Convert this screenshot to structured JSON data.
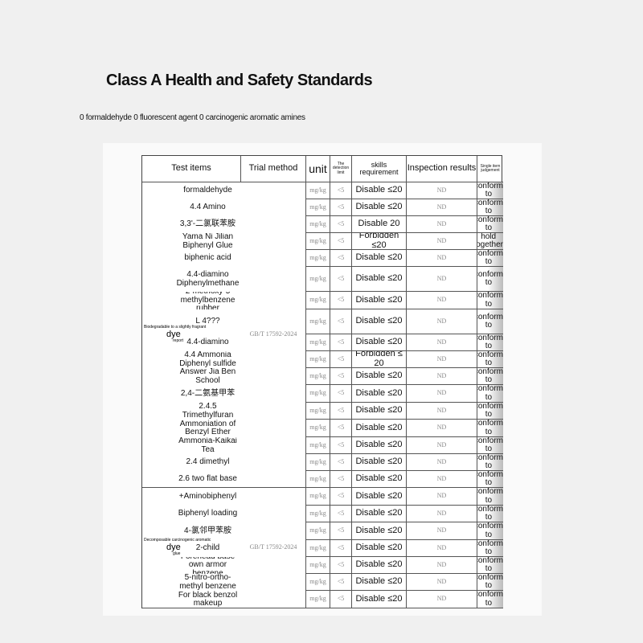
{
  "title": "Class A Health and Safety Standards",
  "subtitle": "0 formaldehyde 0 fluorescent agent 0 carcinogenic aromatic amines",
  "headers": {
    "items": "Test items",
    "method": "Trial method",
    "unit": "unit",
    "limit": "The detection limit",
    "requirement": "skills requirement",
    "results": "Inspection results",
    "judgement": "Single item judgement"
  },
  "groups": [
    {
      "label_top": "Biodegradable to a slightly fragrant",
      "label": "dye",
      "label_note": "report",
      "method": "GB/T 17592-2024",
      "rows": [
        {
          "item": "formaldehyde",
          "req": "Disable ≤20",
          "jud": "conform to"
        },
        {
          "item": "4.4 Amino",
          "req": "Disable ≤20",
          "jud": "conform to"
        },
        {
          "item": "3,3'-二氯联苯胺",
          "req": "Disable 20",
          "jud": "conform to"
        },
        {
          "item": "Yama Ni Jilian Biphenyl Glue",
          "req": "Forbidden ≤20",
          "jud": "hold together"
        },
        {
          "item": "biphenic acid",
          "req": "Disable ≤20",
          "jud": "conform to"
        },
        {
          "item": "4.4-diamino Diphenylmethane",
          "req": "Disable ≤20",
          "jud": "conform to"
        },
        {
          "item": "2-methoxy-5 methylbenzene rubber",
          "req": "Disable ≤20",
          "jud": "conform to"
        },
        {
          "item": "L 4???",
          "req": "Disable ≤20",
          "jud": "conform to"
        },
        {
          "item": "4.4-diamino",
          "req": "Disable ≤20",
          "jud": "conform to"
        },
        {
          "item": "4.4 Ammonia Diphenyl sulfide",
          "req": "Forbidden ≤ 20",
          "jud": "conform to"
        },
        {
          "item": "Answer Jia Ben School",
          "req": "Disable ≤20",
          "jud": "conform to"
        },
        {
          "item": "2,4-二氨基甲苯",
          "req": "Disable ≤20",
          "jud": "conform to"
        },
        {
          "item": "2.4.5 Trimethylfuran",
          "req": "Disable ≤20",
          "jud": "conform to"
        },
        {
          "item": "Ammoniation of Benzyl Ether",
          "req": "Disable ≤20",
          "jud": "conform to"
        },
        {
          "item": "Ammonia-Kaikai Tea",
          "req": "Disable ≤20",
          "jud": "conform to"
        },
        {
          "item": "2.4 dimethyl",
          "req": "Disable ≤20",
          "jud": "conform to"
        },
        {
          "item": "2.6 two flat base",
          "req": "Disable ≤20",
          "jud": "conform to"
        }
      ]
    },
    {
      "label_top": "Decomposable carcinogenic aromatic",
      "label": "dye",
      "label_note": "glue",
      "method": "GB/T 17592-2024",
      "rows": [
        {
          "item": "+Aminobiphenyl",
          "req": "Disable ≤20",
          "jud": "conform to"
        },
        {
          "item": "Biphenyl loading",
          "req": "Disable ≤20",
          "jud": "conform to"
        },
        {
          "item": "4-氯邻甲苯胺",
          "req": "Disable ≤20",
          "jud": "conform to"
        },
        {
          "item": "2-child",
          "req": "Disable ≤20",
          "jud": "conform to"
        },
        {
          "item": "Forehead base own armor benzene",
          "req": "Disable ≤20",
          "jud": "conform to"
        },
        {
          "item": "5-nitro-ortho-methyl benzene",
          "req": "Disable ≤20",
          "jud": "conform to"
        },
        {
          "item": "For black benzol makeup",
          "req": "Disable ≤20",
          "jud": "conform to"
        }
      ]
    }
  ],
  "unit": "mg/kg",
  "limit": "<5",
  "result": "ND"
}
